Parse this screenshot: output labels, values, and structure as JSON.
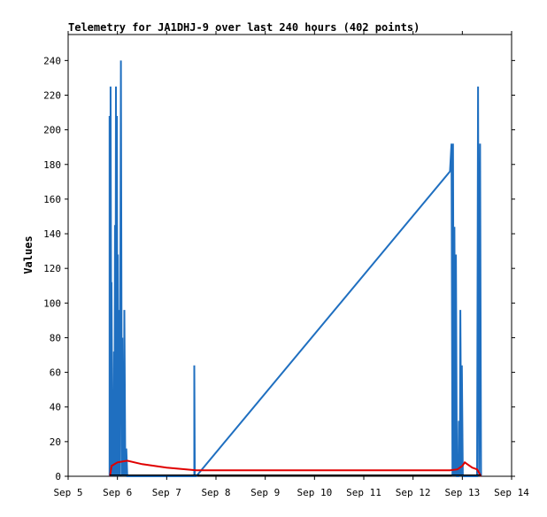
{
  "chart_data": {
    "type": "line",
    "title": "Telemetry for JA1DHJ-9 over last 240 hours (402 points)",
    "xlabel": "",
    "ylabel": "Values",
    "xlim": [
      "Sep 5",
      "Sep 14"
    ],
    "ylim": [
      0,
      255
    ],
    "x_ticks": [
      "Sep 5",
      "Sep 6",
      "Sep 7",
      "Sep 8",
      "Sep 9",
      "Sep 10",
      "Sep 11",
      "Sep 12",
      "Sep 13",
      "Sep 14"
    ],
    "y_ticks": [
      0,
      20,
      40,
      60,
      80,
      100,
      120,
      140,
      160,
      180,
      200,
      220,
      240
    ],
    "grid": false,
    "legend": "none",
    "colors": {
      "series_blue": "#1f6fc0",
      "series_red": "#e00000",
      "series_black": "#000000"
    },
    "series": [
      {
        "color": "#1f6fc0",
        "points": [
          [
            5.84,
            0
          ],
          [
            5.84,
            208
          ],
          [
            5.86,
            0
          ],
          [
            5.86,
            225
          ],
          [
            5.88,
            0
          ],
          [
            5.88,
            112
          ],
          [
            5.9,
            0
          ],
          [
            5.9,
            40
          ],
          [
            5.92,
            0
          ],
          [
            5.93,
            72
          ],
          [
            5.94,
            0
          ],
          [
            5.95,
            145
          ],
          [
            5.96,
            0
          ],
          [
            5.97,
            225
          ],
          [
            5.98,
            0
          ],
          [
            5.99,
            208
          ],
          [
            6.0,
            0
          ],
          [
            6.01,
            128
          ],
          [
            6.02,
            0
          ],
          [
            6.03,
            96
          ],
          [
            6.05,
            0
          ],
          [
            6.07,
            240
          ],
          [
            6.09,
            0
          ],
          [
            6.1,
            80
          ],
          [
            6.11,
            0
          ],
          [
            6.12,
            40
          ],
          [
            6.13,
            0
          ],
          [
            6.14,
            96
          ],
          [
            6.16,
            0
          ],
          [
            6.18,
            16
          ],
          [
            6.2,
            0
          ],
          [
            7.56,
            0
          ],
          [
            7.56,
            64
          ],
          [
            7.57,
            0
          ],
          [
            7.6,
            0
          ],
          [
            12.75,
            176
          ],
          [
            12.78,
            192
          ],
          [
            12.8,
            0
          ],
          [
            12.81,
            192
          ],
          [
            12.83,
            0
          ],
          [
            12.84,
            144
          ],
          [
            12.86,
            0
          ],
          [
            12.87,
            128
          ],
          [
            12.89,
            0
          ],
          [
            12.92,
            0
          ],
          [
            12.93,
            32
          ],
          [
            12.95,
            0
          ],
          [
            12.96,
            96
          ],
          [
            12.98,
            0
          ],
          [
            12.99,
            64
          ],
          [
            13.01,
            0
          ],
          [
            13.3,
            0
          ],
          [
            13.32,
            225
          ],
          [
            13.34,
            0
          ],
          [
            13.36,
            192
          ],
          [
            13.38,
            0
          ]
        ]
      },
      {
        "color": "#e00000",
        "points": [
          [
            5.85,
            0
          ],
          [
            5.88,
            6
          ],
          [
            6.0,
            8
          ],
          [
            6.2,
            9
          ],
          [
            6.5,
            7
          ],
          [
            7.0,
            5
          ],
          [
            7.6,
            3.5
          ],
          [
            8.0,
            3.5
          ],
          [
            9.0,
            3.5
          ],
          [
            10.0,
            3.5
          ],
          [
            11.0,
            3.5
          ],
          [
            12.0,
            3.5
          ],
          [
            12.75,
            3.5
          ],
          [
            12.9,
            4
          ],
          [
            13.0,
            6
          ],
          [
            13.05,
            8
          ],
          [
            13.1,
            7
          ],
          [
            13.2,
            5
          ],
          [
            13.3,
            4
          ],
          [
            13.38,
            0
          ]
        ]
      },
      {
        "color": "#000000",
        "points": [
          [
            5.84,
            0.6
          ],
          [
            13.38,
            0.6
          ]
        ]
      }
    ]
  }
}
